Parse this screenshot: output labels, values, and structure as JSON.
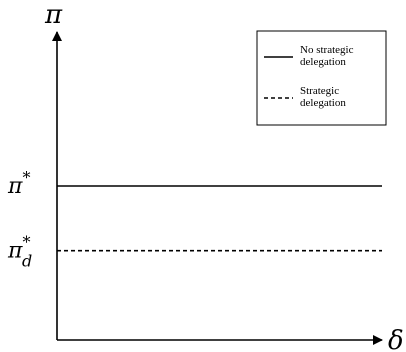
{
  "chart_data": {
    "type": "line",
    "title": "",
    "xlabel": "δ",
    "ylabel": "π",
    "xlim": [
      0,
      1
    ],
    "ylim": [
      0,
      1
    ],
    "grid": false,
    "legend_position": "top-right",
    "y_ticks": [
      {
        "base": "π",
        "sub": "",
        "sup": "*",
        "value": 0.5
      },
      {
        "base": "π",
        "sub": "d",
        "sup": "*",
        "value": 0.29
      }
    ],
    "series": [
      {
        "name": "No strategic delegation",
        "style": "solid",
        "x": [
          0,
          1
        ],
        "y": [
          0.5,
          0.5
        ],
        "color": "#000000"
      },
      {
        "name": "Strategic delegation",
        "style": "dashed",
        "x": [
          0,
          1
        ],
        "y": [
          0.29,
          0.29
        ],
        "color": "#000000"
      }
    ],
    "legend": {
      "entries": [
        {
          "lines": [
            "No strategic",
            "delegation"
          ]
        },
        {
          "lines": [
            "Strategic",
            "delegation"
          ]
        }
      ]
    }
  }
}
